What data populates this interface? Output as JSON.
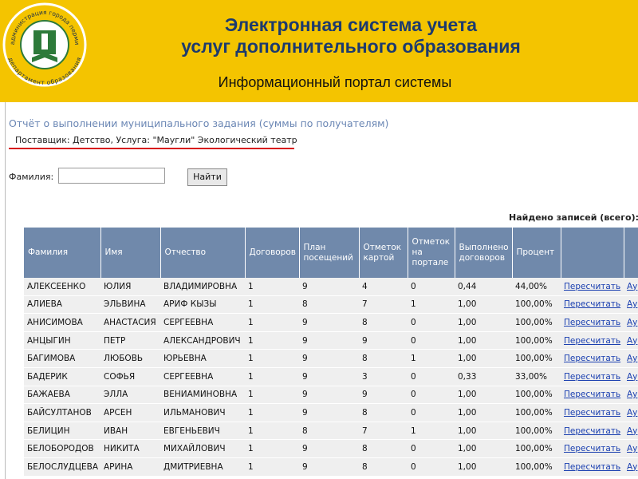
{
  "logo": {
    "top_text": "администрация города перми",
    "bottom_text": "департамент образования"
  },
  "header": {
    "title_line1": "Электронная система учета",
    "title_line2": "услуг дополнительного образования",
    "subtitle": "Информационный портал системы"
  },
  "report": {
    "title": "Отчёт о выполнении муниципального задания (суммы по получателям)",
    "supplier": "Поставщик: Детство, Услуга: \"Маугли\" Экологический театр"
  },
  "search": {
    "label": "Фамилия:",
    "button": "Найти"
  },
  "found_label": "Найдено записей (всего):",
  "table": {
    "columns": [
      "Фамилия",
      "Имя",
      "Отчество",
      "Договоров",
      "План посещений",
      "Отметок картой",
      "Отметок на портале",
      "Выполнено договоров",
      "Процент"
    ],
    "rows": [
      [
        "АЛЕКСЕЕНКО",
        "ЮЛИЯ",
        "ВЛАДИМИРОВНА",
        "1",
        "9",
        "4",
        "0",
        "0,44",
        "44,00%",
        "Пересчитать",
        "Ау"
      ],
      [
        "АЛИЕВА",
        "ЭЛЬВИНА",
        "АРИФ КЫЗЫ",
        "1",
        "8",
        "7",
        "1",
        "1,00",
        "100,00%",
        "Пересчитать",
        "Ау"
      ],
      [
        "АНИСИМОВА",
        "АНАСТАСИЯ",
        "СЕРГЕЕВНА",
        "1",
        "9",
        "8",
        "0",
        "1,00",
        "100,00%",
        "Пересчитать",
        "Ау"
      ],
      [
        "АНЦЫГИН",
        "ПЕТР",
        "АЛЕКСАНДРОВИЧ",
        "1",
        "9",
        "9",
        "0",
        "1,00",
        "100,00%",
        "Пересчитать",
        "Ау"
      ],
      [
        "БАГИМОВА",
        "ЛЮБОВЬ",
        "ЮРЬЕВНА",
        "1",
        "9",
        "8",
        "1",
        "1,00",
        "100,00%",
        "Пересчитать",
        "Ау"
      ],
      [
        "БАДЕРИК",
        "СОФЬЯ",
        "СЕРГЕЕВНА",
        "1",
        "9",
        "3",
        "0",
        "0,33",
        "33,00%",
        "Пересчитать",
        "Ау"
      ],
      [
        "БАЖАЕВА",
        "ЭЛЛА",
        "ВЕНИАМИНОВНА",
        "1",
        "9",
        "9",
        "0",
        "1,00",
        "100,00%",
        "Пересчитать",
        "Ау"
      ],
      [
        "БАЙСУЛТАНОВ",
        "АРСЕН",
        "ИЛЬМАНОВИЧ",
        "1",
        "9",
        "8",
        "0",
        "1,00",
        "100,00%",
        "Пересчитать",
        "Ау"
      ],
      [
        "БЕЛИЦИН",
        "ИВАН",
        "ЕВГЕНЬЕВИЧ",
        "1",
        "8",
        "7",
        "1",
        "1,00",
        "100,00%",
        "Пересчитать",
        "Ау"
      ],
      [
        "БЕЛОБОРОДОВ",
        "НИКИТА",
        "МИХАЙЛОВИЧ",
        "1",
        "9",
        "8",
        "0",
        "1,00",
        "100,00%",
        "Пересчитать",
        "Ау"
      ],
      [
        "БЕЛОСЛУДЦЕВА",
        "АРИНА",
        "ДМИТРИЕВНА",
        "1",
        "9",
        "8",
        "0",
        "1,00",
        "100,00%",
        "Пересчитать",
        "Ау"
      ]
    ]
  }
}
